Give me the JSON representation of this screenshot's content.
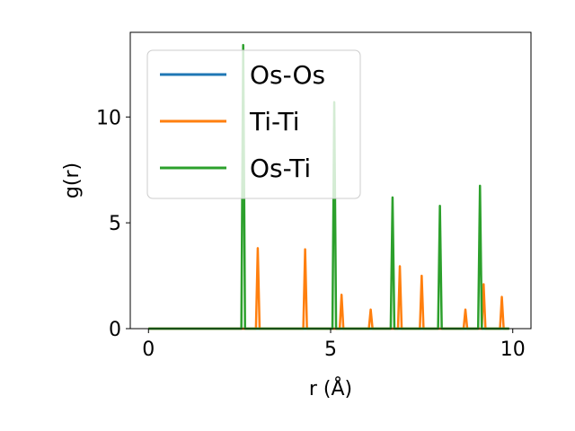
{
  "chart_data": {
    "type": "line",
    "title": "",
    "xlabel": "r (Å)",
    "ylabel": "g(r)",
    "xlim": [
      -0.5,
      10.5
    ],
    "ylim": [
      0,
      14
    ],
    "xticks": [
      0,
      5,
      10
    ],
    "yticks": [
      0,
      5,
      10
    ],
    "grid": false,
    "legend_position": "top-left",
    "baseline_range": [
      0,
      9.9
    ],
    "series": [
      {
        "name": "Os-Os",
        "color": "#1f77b4",
        "peaks": []
      },
      {
        "name": "Ti-Ti",
        "color": "#ff7f0e",
        "peaks": [
          {
            "r": 3.0,
            "g": 3.8
          },
          {
            "r": 4.3,
            "g": 3.75
          },
          {
            "r": 5.3,
            "g": 1.6
          },
          {
            "r": 6.1,
            "g": 0.9
          },
          {
            "r": 6.9,
            "g": 2.95
          },
          {
            "r": 7.5,
            "g": 2.5
          },
          {
            "r": 8.7,
            "g": 0.9
          },
          {
            "r": 9.2,
            "g": 2.1
          },
          {
            "r": 9.7,
            "g": 1.5
          }
        ]
      },
      {
        "name": "Os-Ti",
        "color": "#2ca02c",
        "peaks": [
          {
            "r": 2.6,
            "g": 13.4
          },
          {
            "r": 5.1,
            "g": 10.7
          },
          {
            "r": 6.7,
            "g": 6.2
          },
          {
            "r": 8.0,
            "g": 5.8
          },
          {
            "r": 9.1,
            "g": 6.75
          }
        ]
      }
    ]
  }
}
